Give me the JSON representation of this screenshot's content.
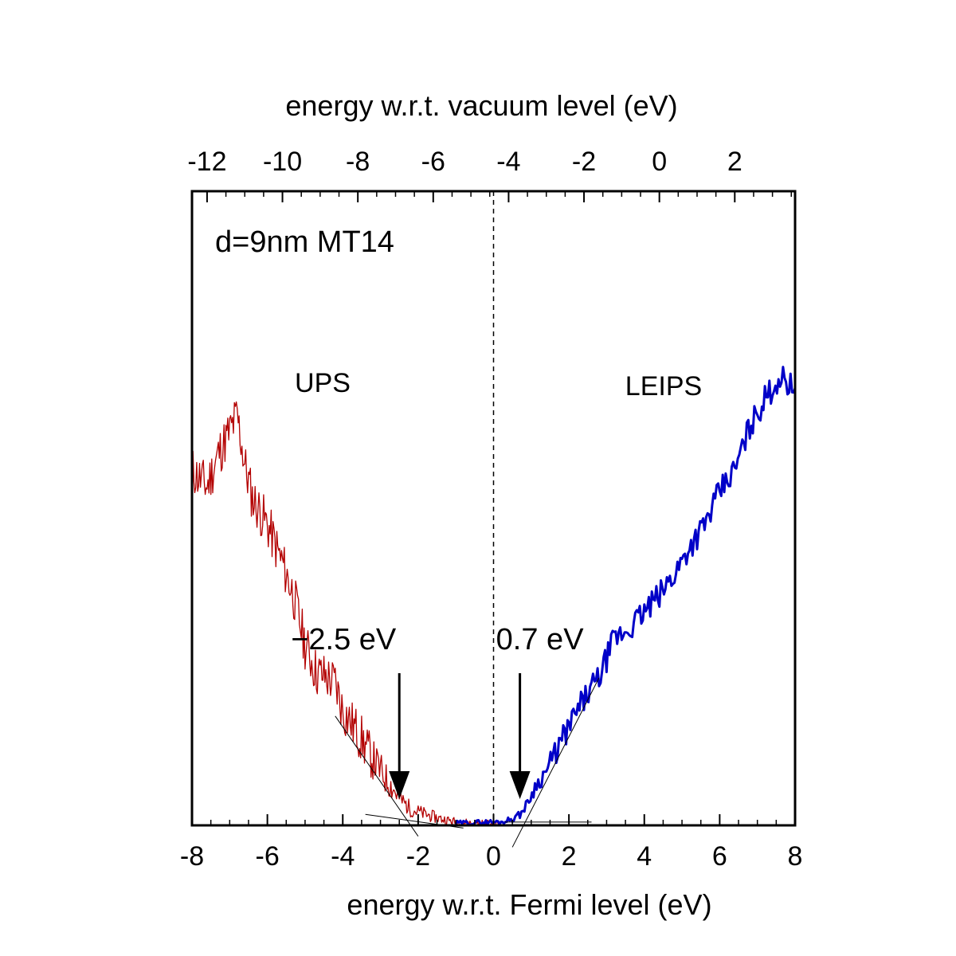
{
  "chart_data": {
    "type": "line",
    "title": "",
    "xlabel": "energy w.r.t. Fermi level (eV)",
    "x2label": "energy w.r.t. vacuum level (eV)",
    "ylabel": "",
    "xlim": [
      -8,
      8
    ],
    "x2lim": [
      -12.4,
      3.6
    ],
    "ylim": [
      0,
      1
    ],
    "grid": false,
    "x_ticks": [
      "-8",
      "-6",
      "-4",
      "-2",
      "0",
      "2",
      "4",
      "6",
      "8"
    ],
    "x2_ticks": [
      "-12",
      "-10",
      "-8",
      "-6",
      "-4",
      "-2",
      "0",
      "2"
    ],
    "annotation_text": "d=9nm MT14",
    "series": [
      {
        "name": "UPS",
        "color": "#b30000",
        "points": [
          [
            -8.0,
            0.65
          ],
          [
            -7.6,
            0.62
          ],
          [
            -7.3,
            0.68
          ],
          [
            -7.0,
            0.72
          ],
          [
            -6.8,
            0.75
          ],
          [
            -6.6,
            0.66
          ],
          [
            -6.4,
            0.6
          ],
          [
            -6.0,
            0.55
          ],
          [
            -5.6,
            0.48
          ],
          [
            -5.3,
            0.42
          ],
          [
            -5.0,
            0.33
          ],
          [
            -4.7,
            0.28
          ],
          [
            -4.4,
            0.27
          ],
          [
            -4.2,
            0.26
          ],
          [
            -4.0,
            0.21
          ],
          [
            -3.6,
            0.17
          ],
          [
            -3.2,
            0.12
          ],
          [
            -2.8,
            0.08
          ],
          [
            -2.5,
            0.05
          ],
          [
            -2.2,
            0.03
          ],
          [
            -1.8,
            0.02
          ],
          [
            -1.4,
            0.012
          ],
          [
            -1.0,
            0.006
          ],
          [
            -0.6,
            0.004
          ],
          [
            -0.2,
            0.003
          ],
          [
            0.2,
            0.002
          ]
        ]
      },
      {
        "name": "LEIPS",
        "color": "#0000c8",
        "points": [
          [
            -1.0,
            0.004
          ],
          [
            -0.6,
            0.005
          ],
          [
            -0.2,
            0.006
          ],
          [
            0.2,
            0.006
          ],
          [
            0.5,
            0.012
          ],
          [
            0.7,
            0.02
          ],
          [
            0.9,
            0.04
          ],
          [
            1.1,
            0.07
          ],
          [
            1.4,
            0.1
          ],
          [
            1.7,
            0.14
          ],
          [
            2.0,
            0.18
          ],
          [
            2.4,
            0.23
          ],
          [
            2.8,
            0.27
          ],
          [
            3.2,
            0.34
          ],
          [
            3.6,
            0.36
          ],
          [
            4.0,
            0.39
          ],
          [
            4.4,
            0.42
          ],
          [
            4.8,
            0.46
          ],
          [
            5.2,
            0.51
          ],
          [
            5.6,
            0.55
          ],
          [
            6.0,
            0.61
          ],
          [
            6.4,
            0.65
          ],
          [
            6.8,
            0.73
          ],
          [
            7.2,
            0.78
          ],
          [
            7.6,
            0.82
          ],
          [
            8.0,
            0.8
          ]
        ]
      }
    ],
    "series_labels": [
      "UPS",
      "LEIPS"
    ],
    "markers": [
      {
        "x": -2.5,
        "label": "−2.5 eV"
      },
      {
        "x": 0.7,
        "label": "0.7 eV"
      }
    ],
    "vertical_reference": {
      "x": 0,
      "style": "dashed"
    }
  }
}
